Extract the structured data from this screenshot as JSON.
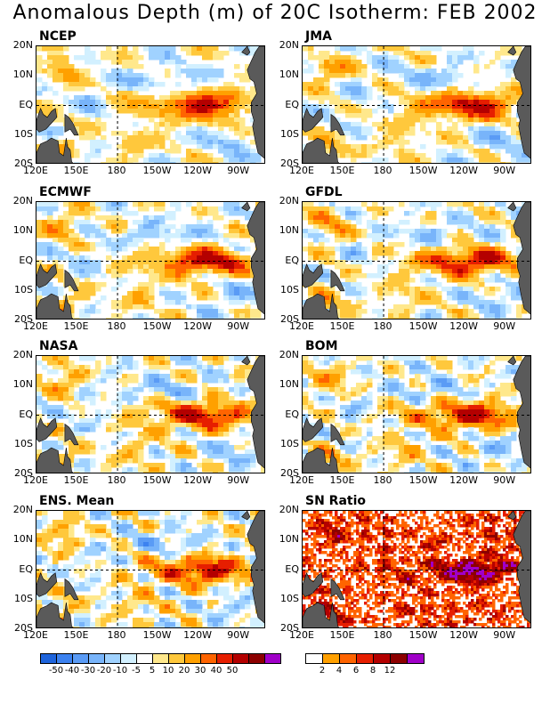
{
  "title": "Anomalous Depth (m) of 20C Isotherm: FEB 2002",
  "lat_labels": [
    "20N",
    "10N",
    "EQ",
    "10S",
    "20S"
  ],
  "lon_labels": [
    "120E",
    "150E",
    "180",
    "150W",
    "120W",
    "90W"
  ],
  "panels": [
    {
      "title": "NCEP"
    },
    {
      "title": "JMA"
    },
    {
      "title": "ECMWF"
    },
    {
      "title": "GFDL"
    },
    {
      "title": "NASA"
    },
    {
      "title": "BOM"
    },
    {
      "title": "ENS. Mean"
    },
    {
      "title": "SN Ratio"
    }
  ],
  "chart_data": [
    {
      "type": "heatmap",
      "title": "Anomalous Depth (m) of 20C Isotherm: FEB 2002",
      "panels": [
        "NCEP",
        "JMA",
        "ECMWF",
        "GFDL",
        "NASA",
        "BOM",
        "ENS. Mean"
      ],
      "xlim": [
        "120E",
        "70W"
      ],
      "ylim": [
        "20S",
        "20N"
      ],
      "x_ticks": [
        "120E",
        "150E",
        "180",
        "150W",
        "120W",
        "90W"
      ],
      "y_ticks": [
        "20N",
        "10N",
        "EQ",
        "10S",
        "20S"
      ],
      "colorbar": {
        "labels": [
          "-50",
          "-40",
          "-30",
          "-20",
          "-10",
          "-5",
          "5",
          "10",
          "20",
          "30",
          "40",
          "50"
        ],
        "colors": [
          "#1e64dc",
          "#3c82f0",
          "#5a9bf5",
          "#78b4fa",
          "#a0d2ff",
          "#d2f0ff",
          "#ffffff",
          "#ffe88c",
          "#ffc83c",
          "#ffa000",
          "#ff6400",
          "#e61e00",
          "#b40000",
          "#8c0000",
          "#a000c8"
        ]
      },
      "pattern": "positive anomalies (20-50 m) along the equator from about 150W to 90W, peaking near 110W; patchy positive anomalies in the western Pacific off-equator; negative anomalies mainly in the central and eastern Pacific near 10N and 10S"
    },
    {
      "type": "heatmap",
      "title": "SN Ratio",
      "xlim": [
        "120E",
        "70W"
      ],
      "ylim": [
        "20S",
        "20N"
      ],
      "colorbar": {
        "labels": [
          "2",
          "4",
          "6",
          "8",
          "12"
        ],
        "colors": [
          "#ffffff",
          "#ffa000",
          "#ff6400",
          "#e61e00",
          "#b40000",
          "#8c0000",
          "#a000c8"
        ]
      },
      "pattern": "highest ratios (above 12) in an equatorial band from about 150W to 95W; scattered moderate ratios in the western Pacific"
    }
  ]
}
